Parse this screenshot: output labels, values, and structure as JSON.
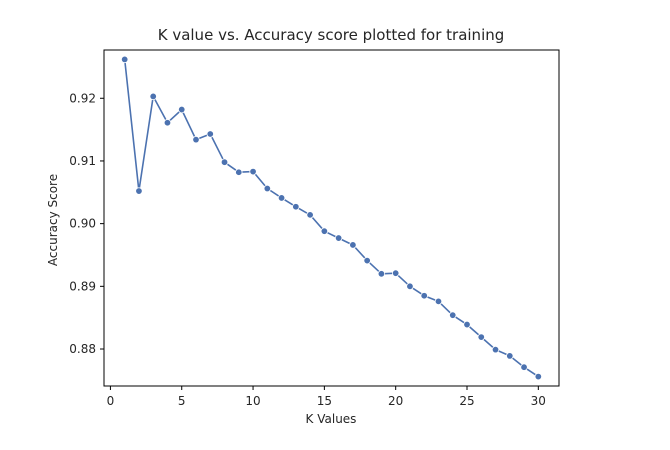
{
  "chart_data": {
    "type": "line",
    "title": "K value vs. Accuracy score plotted for training",
    "xlabel": "K Values",
    "ylabel": "Accuracy Score",
    "xlim": [
      -0.45,
      31.45
    ],
    "ylim": [
      0.8741,
      0.9277
    ],
    "xticks": [
      0,
      5,
      10,
      15,
      20,
      25,
      30
    ],
    "xtick_labels": [
      "0",
      "5",
      "10",
      "15",
      "20",
      "25",
      "30"
    ],
    "yticks": [
      0.88,
      0.89,
      0.9,
      0.91,
      0.92
    ],
    "ytick_labels": [
      "0.88",
      "0.89",
      "0.90",
      "0.91",
      "0.92"
    ],
    "grid": false,
    "legend": false,
    "marker": "circle",
    "color": "#4c72b0",
    "series": [
      {
        "x": [
          1,
          2,
          3,
          4,
          5,
          6,
          7,
          8,
          9,
          10,
          11,
          12,
          13,
          14,
          15,
          16,
          17,
          18,
          19,
          20,
          21,
          22,
          23,
          24,
          25,
          26,
          27,
          28,
          29,
          30
        ],
        "values": [
          0.9262,
          0.9052,
          0.9203,
          0.9161,
          0.9182,
          0.9134,
          0.9143,
          0.9098,
          0.9082,
          0.9083,
          0.9056,
          0.9041,
          0.9027,
          0.9014,
          0.8988,
          0.8977,
          0.8966,
          0.8941,
          0.892,
          0.8921,
          0.89,
          0.8885,
          0.8876,
          0.8854,
          0.8839,
          0.8819,
          0.8799,
          0.8789,
          0.8771,
          0.8756
        ]
      }
    ]
  }
}
